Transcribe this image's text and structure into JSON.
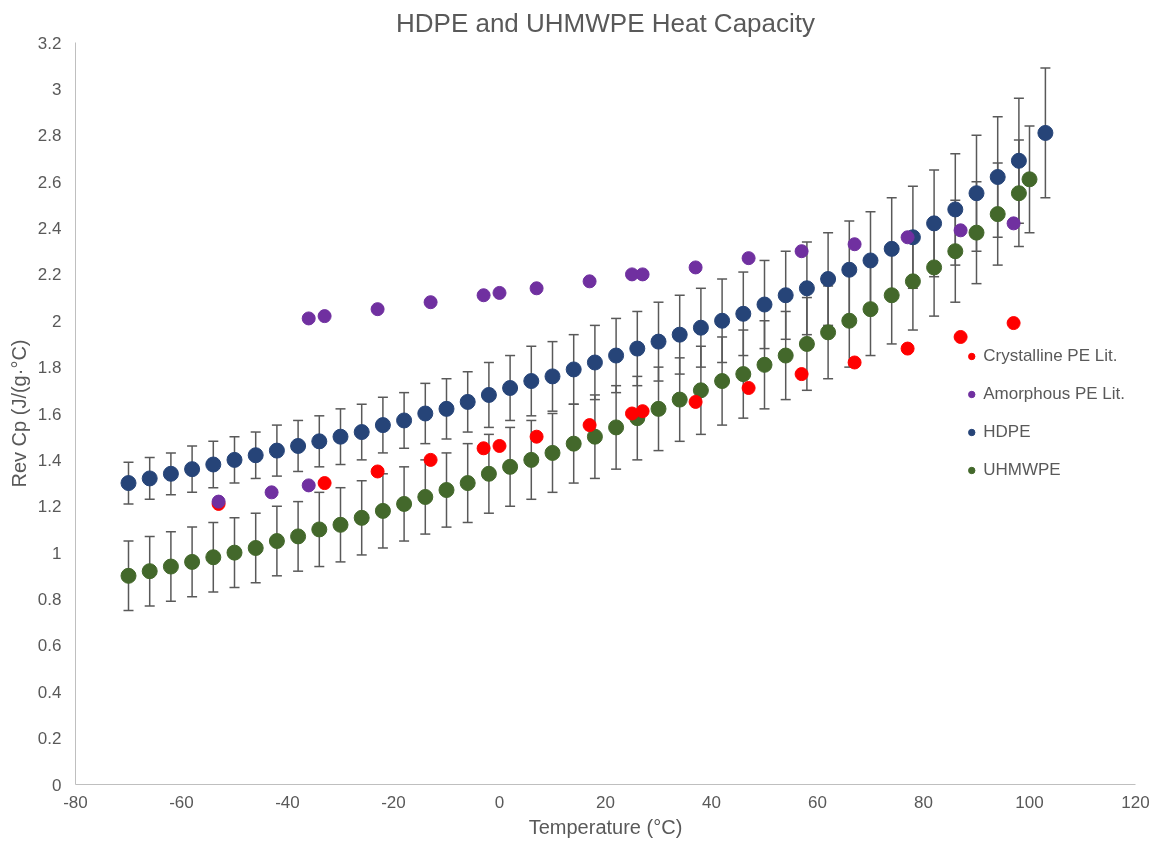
{
  "chart_data": {
    "type": "scatter",
    "title": "HDPE and UHMWPE Heat Capacity",
    "xlabel": "Temperature (°C)",
    "ylabel": "Rev Cp (J/(g·°C)",
    "xlim": [
      -80,
      120
    ],
    "xticks": [
      -80,
      -60,
      -40,
      -20,
      0,
      20,
      40,
      60,
      80,
      100,
      120
    ],
    "ylim": [
      0,
      3.2
    ],
    "yticks": [
      0,
      0.2,
      0.4,
      0.6,
      0.8,
      1,
      1.2,
      1.4,
      1.6,
      1.8,
      2,
      2.2,
      2.4,
      2.6,
      2.8,
      3,
      3.2
    ],
    "marker": "circle",
    "legend": "right",
    "grid": false,
    "series": [
      {
        "name": "Crystalline PE Lit.",
        "color": "#ff0000",
        "x": [
          -53,
          -33,
          -23,
          -13,
          -3,
          0,
          7,
          17,
          25,
          27,
          37,
          47,
          57,
          67,
          77,
          87,
          97
        ],
        "values": [
          1.21,
          1.3,
          1.35,
          1.4,
          1.45,
          1.46,
          1.5,
          1.55,
          1.6,
          1.61,
          1.65,
          1.71,
          1.77,
          1.82,
          1.88,
          1.93,
          1.99
        ]
      },
      {
        "name": "Amorphous PE Lit.",
        "color": "#7030a0",
        "x": [
          -53,
          -43,
          -36,
          -36,
          -33,
          -23,
          -13,
          -3,
          0,
          7,
          17,
          25,
          27,
          37,
          47,
          57,
          67,
          77,
          87,
          97
        ],
        "values": [
          1.22,
          1.26,
          1.29,
          2.01,
          2.02,
          2.05,
          2.08,
          2.11,
          2.12,
          2.14,
          2.17,
          2.2,
          2.2,
          2.23,
          2.27,
          2.3,
          2.33,
          2.36,
          2.39,
          2.42
        ]
      },
      {
        "name": "HDPE",
        "color": "#264478",
        "x": [
          -70,
          -66,
          -62,
          -58,
          -54,
          -50,
          -46,
          -42,
          -38,
          -34,
          -30,
          -26,
          -22,
          -18,
          -14,
          -10,
          -6,
          -2,
          2,
          6,
          10,
          14,
          18,
          22,
          26,
          30,
          34,
          38,
          42,
          46,
          50,
          54,
          58,
          62,
          66,
          70,
          74,
          78,
          82,
          86,
          90,
          94,
          98,
          103
        ],
        "values": [
          1.3,
          1.32,
          1.34,
          1.36,
          1.38,
          1.4,
          1.42,
          1.44,
          1.46,
          1.48,
          1.5,
          1.52,
          1.55,
          1.57,
          1.6,
          1.62,
          1.65,
          1.68,
          1.71,
          1.74,
          1.76,
          1.79,
          1.82,
          1.85,
          1.88,
          1.91,
          1.94,
          1.97,
          2.0,
          2.03,
          2.07,
          2.11,
          2.14,
          2.18,
          2.22,
          2.26,
          2.31,
          2.36,
          2.42,
          2.48,
          2.55,
          2.62,
          2.69,
          2.81
        ],
        "errors": [
          0.09,
          0.09,
          0.09,
          0.1,
          0.1,
          0.1,
          0.1,
          0.11,
          0.11,
          0.11,
          0.12,
          0.12,
          0.12,
          0.12,
          0.13,
          0.13,
          0.13,
          0.14,
          0.14,
          0.15,
          0.15,
          0.15,
          0.16,
          0.16,
          0.16,
          0.17,
          0.17,
          0.17,
          0.18,
          0.18,
          0.19,
          0.19,
          0.2,
          0.2,
          0.21,
          0.21,
          0.22,
          0.22,
          0.23,
          0.24,
          0.25,
          0.26,
          0.27,
          0.28
        ]
      },
      {
        "name": "UHMWPE",
        "color": "#43682b",
        "x": [
          -70,
          -66,
          -62,
          -58,
          -54,
          -50,
          -46,
          -42,
          -38,
          -34,
          -30,
          -26,
          -22,
          -18,
          -14,
          -10,
          -6,
          -2,
          2,
          6,
          10,
          14,
          18,
          22,
          26,
          30,
          34,
          38,
          42,
          46,
          50,
          54,
          58,
          62,
          66,
          70,
          74,
          78,
          82,
          86,
          90,
          94,
          98,
          100
        ],
        "values": [
          0.9,
          0.92,
          0.94,
          0.96,
          0.98,
          1.0,
          1.02,
          1.05,
          1.07,
          1.1,
          1.12,
          1.15,
          1.18,
          1.21,
          1.24,
          1.27,
          1.3,
          1.34,
          1.37,
          1.4,
          1.43,
          1.47,
          1.5,
          1.54,
          1.58,
          1.62,
          1.66,
          1.7,
          1.74,
          1.77,
          1.81,
          1.85,
          1.9,
          1.95,
          2.0,
          2.05,
          2.11,
          2.17,
          2.23,
          2.3,
          2.38,
          2.46,
          2.55,
          2.61
        ],
        "errors": [
          0.15,
          0.15,
          0.15,
          0.15,
          0.15,
          0.15,
          0.15,
          0.15,
          0.15,
          0.16,
          0.16,
          0.16,
          0.16,
          0.16,
          0.16,
          0.16,
          0.17,
          0.17,
          0.17,
          0.17,
          0.17,
          0.17,
          0.18,
          0.18,
          0.18,
          0.18,
          0.18,
          0.19,
          0.19,
          0.19,
          0.19,
          0.19,
          0.2,
          0.2,
          0.2,
          0.2,
          0.21,
          0.21,
          0.21,
          0.22,
          0.22,
          0.22,
          0.23,
          0.23
        ]
      }
    ]
  }
}
